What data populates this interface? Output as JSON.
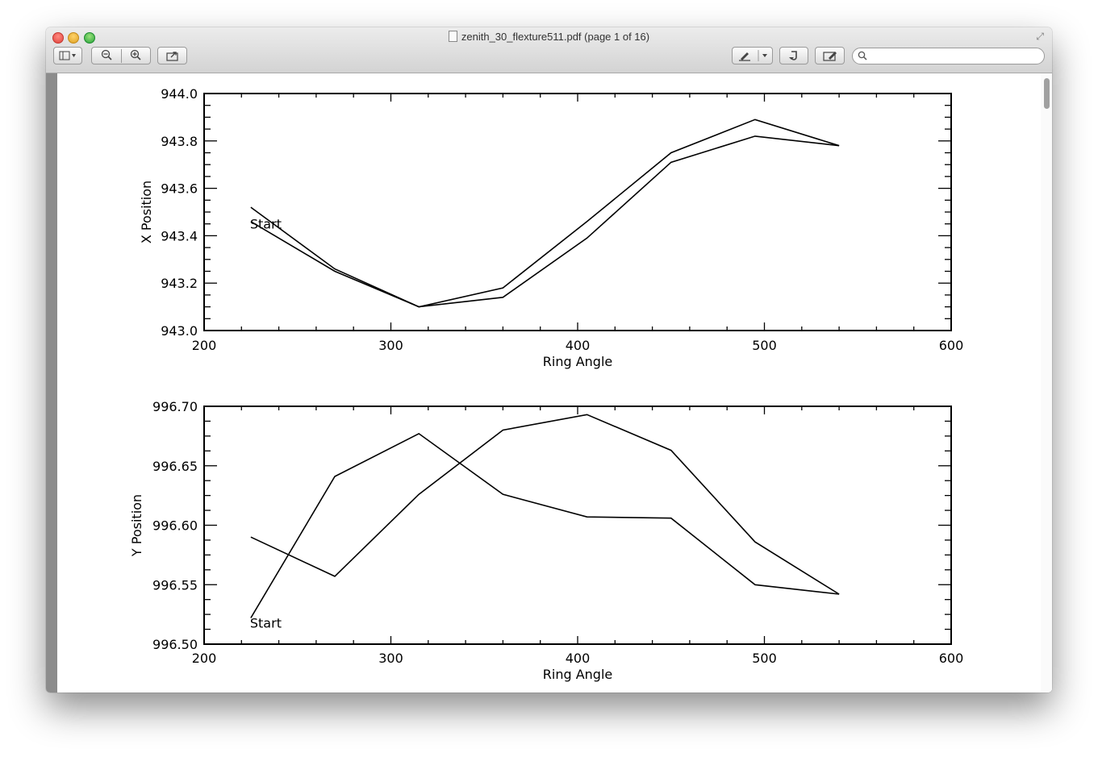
{
  "window": {
    "title": "zenith_30_flexture511.pdf (page 1 of 16)"
  },
  "toolbar": {
    "search_placeholder": "",
    "icons": [
      "sidebar-icon",
      "zoom-out-icon",
      "zoom-in-icon",
      "share-icon",
      "annotate-icon",
      "rotate-icon",
      "edit-icon",
      "search-icon"
    ]
  },
  "chart_data": [
    {
      "type": "line",
      "title": "",
      "xlabel": "Ring Angle",
      "ylabel": "X Position",
      "xlim": [
        200,
        600
      ],
      "ylim": [
        943.0,
        944.0
      ],
      "xticks": [
        200,
        300,
        400,
        500,
        600
      ],
      "xtick_labels": [
        "200",
        "300",
        "400",
        "500",
        "600"
      ],
      "yticks": [
        943.0,
        943.2,
        943.4,
        943.6,
        943.8,
        944.0
      ],
      "ytick_labels": [
        "943.0",
        "943.2",
        "943.4",
        "943.6",
        "943.8",
        "944.0"
      ],
      "annotation": {
        "text": "Start",
        "x": 225,
        "y": 943.45
      },
      "grid": false,
      "series": [
        {
          "values": [
            [
              225,
              943.52
            ],
            [
              270,
              943.26
            ],
            [
              315,
              943.1
            ],
            [
              360,
              943.18
            ],
            [
              405,
              943.46
            ],
            [
              450,
              943.75
            ],
            [
              495,
              943.89
            ],
            [
              540,
              943.78
            ]
          ]
        },
        {
          "values": [
            [
              225,
              943.46
            ],
            [
              270,
              943.25
            ],
            [
              315,
              943.1
            ],
            [
              360,
              943.14
            ],
            [
              405,
              943.39
            ],
            [
              450,
              943.71
            ],
            [
              495,
              943.82
            ],
            [
              540,
              943.78
            ]
          ]
        }
      ]
    },
    {
      "type": "line",
      "title": "",
      "xlabel": "Ring Angle",
      "ylabel": "Y Position",
      "xlim": [
        200,
        600
      ],
      "ylim": [
        996.5,
        996.7
      ],
      "xticks": [
        200,
        300,
        400,
        500,
        600
      ],
      "xtick_labels": [
        "200",
        "300",
        "400",
        "500",
        "600"
      ],
      "yticks": [
        996.5,
        996.55,
        996.6,
        996.65,
        996.7
      ],
      "ytick_labels": [
        "996.50",
        "996.55",
        "996.60",
        "996.65",
        "996.70"
      ],
      "annotation": {
        "text": "Start",
        "x": 225,
        "y": 996.518
      },
      "grid": false,
      "series": [
        {
          "values": [
            [
              225,
              996.522
            ],
            [
              270,
              996.641
            ],
            [
              315,
              996.677
            ],
            [
              360,
              996.626
            ],
            [
              405,
              996.607
            ],
            [
              450,
              996.606
            ],
            [
              495,
              996.55
            ],
            [
              540,
              996.542
            ]
          ]
        },
        {
          "values": [
            [
              225,
              996.59
            ],
            [
              270,
              996.557
            ],
            [
              315,
              996.626
            ],
            [
              360,
              996.68
            ],
            [
              405,
              996.693
            ],
            [
              450,
              996.663
            ],
            [
              495,
              996.586
            ],
            [
              540,
              996.542
            ]
          ]
        }
      ]
    }
  ]
}
